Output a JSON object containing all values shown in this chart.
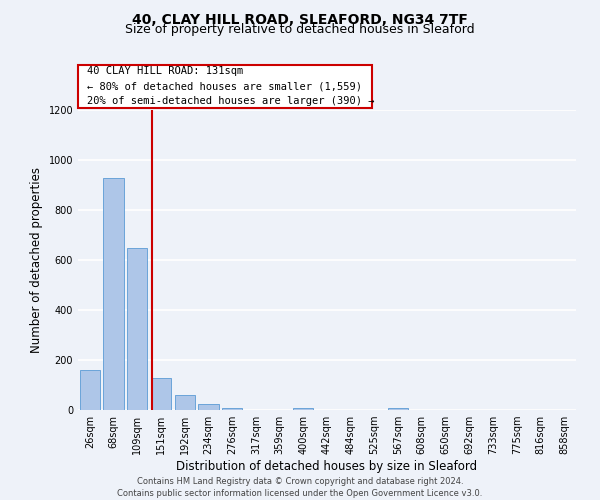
{
  "title": "40, CLAY HILL ROAD, SLEAFORD, NG34 7TF",
  "subtitle": "Size of property relative to detached houses in Sleaford",
  "xlabel": "Distribution of detached houses by size in Sleaford",
  "ylabel": "Number of detached properties",
  "bin_labels": [
    "26sqm",
    "68sqm",
    "109sqm",
    "151sqm",
    "192sqm",
    "234sqm",
    "276sqm",
    "317sqm",
    "359sqm",
    "400sqm",
    "442sqm",
    "484sqm",
    "525sqm",
    "567sqm",
    "608sqm",
    "650sqm",
    "692sqm",
    "733sqm",
    "775sqm",
    "816sqm",
    "858sqm"
  ],
  "bar_heights": [
    160,
    930,
    650,
    130,
    60,
    25,
    10,
    0,
    0,
    10,
    0,
    0,
    0,
    10,
    0,
    0,
    0,
    0,
    0,
    0,
    0
  ],
  "bar_color": "#aec6e8",
  "bar_edge_color": "#5b9bd5",
  "ylim": [
    0,
    1200
  ],
  "yticks": [
    0,
    200,
    400,
    600,
    800,
    1000,
    1200
  ],
  "vline_x": 2.62,
  "vline_color": "#cc0000",
  "ann_line1": "40 CLAY HILL ROAD: 131sqm",
  "ann_line2": "← 80% of detached houses are smaller (1,559)",
  "ann_line3": "20% of semi-detached houses are larger (390) →",
  "box_edge_color": "#cc0000",
  "footer_line1": "Contains HM Land Registry data © Crown copyright and database right 2024.",
  "footer_line2": "Contains public sector information licensed under the Open Government Licence v3.0.",
  "background_color": "#eef2f9",
  "grid_color": "#ffffff",
  "title_fontsize": 10,
  "subtitle_fontsize": 9,
  "axis_label_fontsize": 8.5,
  "tick_fontsize": 7,
  "annotation_fontsize": 7.5,
  "footer_fontsize": 6
}
